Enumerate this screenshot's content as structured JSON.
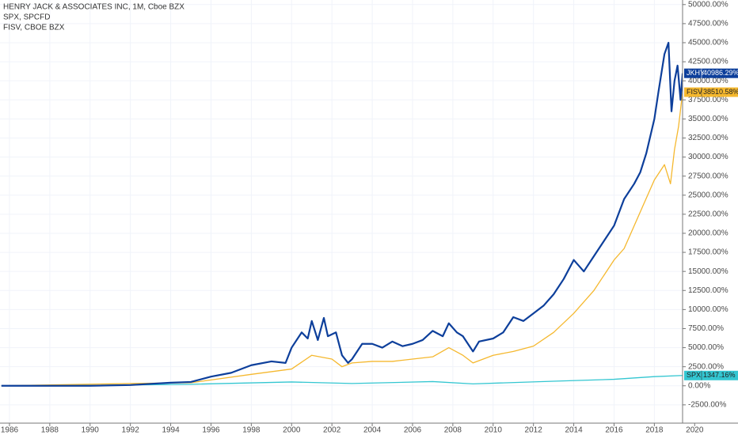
{
  "chart_data": {
    "type": "line",
    "legend": [
      "HENRY JACK & ASSOCIATES INC, 1M, Cboe BZX",
      "SPX, SPCFD",
      "FISV, CBOE BZX"
    ],
    "series": [
      {
        "name": "JKHY",
        "color": "#0d3f9b",
        "width": 2.2,
        "end_label": "40986.29%",
        "x": [
          1985.6,
          1990,
          1992,
          1994,
          1995,
          1996,
          1997,
          1998,
          1999,
          1999.7,
          2000,
          2000.5,
          2000.8,
          2001,
          2001.3,
          2001.6,
          2001.8,
          2002.2,
          2002.5,
          2002.8,
          2003,
          2003.5,
          2004,
          2004.5,
          2005,
          2005.5,
          2006,
          2006.5,
          2007,
          2007.5,
          2007.8,
          2008.2,
          2008.5,
          2009,
          2009.3,
          2010,
          2010.5,
          2011,
          2011.5,
          2012,
          2012.5,
          2013,
          2013.5,
          2014,
          2014.5,
          2015,
          2015.5,
          2016,
          2016.5,
          2017,
          2017.3,
          2017.6,
          2018,
          2018.2,
          2018.5,
          2018.7,
          2018.85,
          2019.0,
          2019.15,
          2019.3,
          2019.4
        ],
        "values": [
          0,
          0,
          100,
          400,
          500,
          1200,
          1700,
          2700,
          3200,
          3000,
          5000,
          7000,
          6200,
          8500,
          6000,
          8900,
          6500,
          7000,
          4000,
          3000,
          3500,
          5500,
          5500,
          5000,
          5800,
          5200,
          5500,
          6000,
          7200,
          6500,
          8200,
          7000,
          6500,
          4500,
          5800,
          6200,
          7000,
          9000,
          8500,
          9500,
          10500,
          12000,
          14000,
          16500,
          15000,
          17000,
          19000,
          21000,
          24500,
          26500,
          28000,
          30500,
          35000,
          38500,
          43500,
          45000,
          36000,
          40000,
          42000,
          37500,
          40986.29
        ]
      },
      {
        "name": "FISV",
        "color": "#f5b82e",
        "width": 1.3,
        "end_label": "38510.58%",
        "x": [
          1985.6,
          1992,
          1995,
          1998,
          2000,
          2001,
          2002,
          2002.5,
          2003,
          2004,
          2005,
          2006,
          2007,
          2007.8,
          2008.5,
          2009,
          2010,
          2011,
          2012,
          2013,
          2014,
          2015,
          2016,
          2016.5,
          2017,
          2017.5,
          2018,
          2018.5,
          2018.8,
          2019,
          2019.2,
          2019.4
        ],
        "values": [
          0,
          300,
          400,
          1500,
          2200,
          4000,
          3500,
          2500,
          3000,
          3200,
          3200,
          3500,
          3800,
          5000,
          4000,
          3000,
          4000,
          4500,
          5200,
          7000,
          9500,
          12500,
          16500,
          18000,
          21000,
          24000,
          27000,
          29000,
          26500,
          31000,
          34000,
          38510.58
        ]
      },
      {
        "name": "SPX",
        "color": "#33c6d1",
        "width": 1.3,
        "end_label": "1347.16%",
        "x": [
          1985.6,
          1990,
          1995,
          2000,
          2003,
          2007,
          2009,
          2013,
          2016,
          2018,
          2019.4
        ],
        "values": [
          0,
          50,
          200,
          500,
          300,
          550,
          250,
          600,
          850,
          1200,
          1347.16
        ]
      }
    ],
    "xlim": [
      1985.53,
      2022.15
    ],
    "xticks": [
      1986,
      1988,
      1990,
      1992,
      1994,
      1996,
      1998,
      2000,
      2002,
      2004,
      2006,
      2008,
      2010,
      2012,
      2014,
      2016,
      2018,
      2020
    ],
    "ylim": [
      -4900,
      50600
    ],
    "yticks": [
      {
        "value": -2500,
        "label": "-2500.00%"
      },
      {
        "value": 0,
        "label": "0.00%"
      },
      {
        "value": 2500,
        "label": "2500.00%"
      },
      {
        "value": 5000,
        "label": "5000.00%"
      },
      {
        "value": 7500,
        "label": "7500.00%"
      },
      {
        "value": 10000,
        "label": "10000.00%"
      },
      {
        "value": 12500,
        "label": "12500.00%"
      },
      {
        "value": 15000,
        "label": "15000.00%"
      },
      {
        "value": 17500,
        "label": "17500.00%"
      },
      {
        "value": 20000,
        "label": "20000.00%"
      },
      {
        "value": 22500,
        "label": "22500.00%"
      },
      {
        "value": 25000,
        "label": "25000.00%"
      },
      {
        "value": 27500,
        "label": "27500.00%"
      },
      {
        "value": 30000,
        "label": "30000.00%"
      },
      {
        "value": 32500,
        "label": "32500.00%"
      },
      {
        "value": 35000,
        "label": "35000.00%"
      },
      {
        "value": 37500,
        "label": "37500.00%"
      },
      {
        "value": 40000,
        "label": "40000.00%"
      },
      {
        "value": 42500,
        "label": "42500.00%"
      },
      {
        "value": 45000,
        "label": "45000.00%"
      },
      {
        "value": 47500,
        "label": "47500.00%"
      },
      {
        "value": 50000,
        "label": "50000.00%"
      }
    ],
    "grid": true
  }
}
